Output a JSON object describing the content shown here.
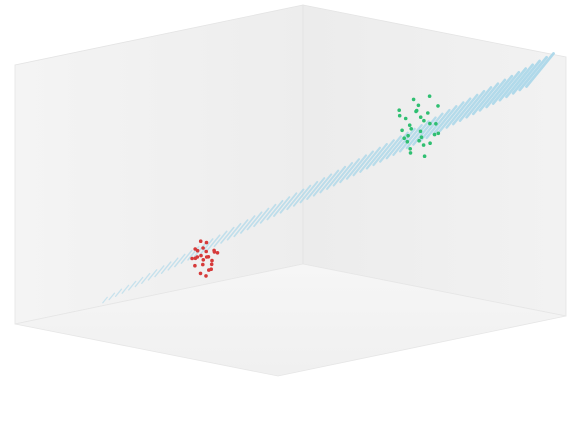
{
  "chart_data": {
    "type": "scatter",
    "dimensions": 3,
    "title": "",
    "xlabel": "",
    "ylabel": "",
    "zlabel": "",
    "axes_visible": false,
    "grid": false,
    "legend": "none",
    "panes": {
      "back_color": "#eeeeee",
      "floor_color": "#f3f3f3"
    },
    "series": [
      {
        "color": "#2fbf71",
        "points": [
          [
            0.32,
            0.78,
            0.82
          ],
          [
            0.29,
            0.8,
            0.77
          ],
          [
            0.35,
            0.76,
            0.75
          ],
          [
            0.31,
            0.79,
            0.72
          ],
          [
            0.27,
            0.77,
            0.8
          ],
          [
            0.33,
            0.82,
            0.7
          ],
          [
            0.36,
            0.8,
            0.78
          ],
          [
            0.3,
            0.74,
            0.74
          ],
          [
            0.28,
            0.82,
            0.84
          ],
          [
            0.34,
            0.78,
            0.68
          ],
          [
            0.31,
            0.76,
            0.86
          ],
          [
            0.37,
            0.79,
            0.73
          ],
          [
            0.26,
            0.79,
            0.76
          ],
          [
            0.32,
            0.81,
            0.79
          ],
          [
            0.3,
            0.77,
            0.7
          ],
          [
            0.35,
            0.83,
            0.76
          ],
          [
            0.29,
            0.75,
            0.81
          ],
          [
            0.33,
            0.77,
            0.66
          ],
          [
            0.31,
            0.84,
            0.74
          ],
          [
            0.34,
            0.74,
            0.8
          ],
          [
            0.28,
            0.79,
            0.69
          ],
          [
            0.36,
            0.76,
            0.83
          ],
          [
            0.3,
            0.81,
            0.88
          ],
          [
            0.32,
            0.75,
            0.72
          ],
          [
            0.27,
            0.81,
            0.73
          ],
          [
            0.35,
            0.78,
            0.71
          ],
          [
            0.33,
            0.8,
            0.85
          ],
          [
            0.29,
            0.78,
            0.64
          ],
          [
            0.31,
            0.73,
            0.78
          ],
          [
            0.34,
            0.82,
            0.81
          ]
        ]
      },
      {
        "color": "#d63a3a",
        "points": [
          [
            0.62,
            0.3,
            0.22
          ],
          [
            0.6,
            0.32,
            0.25
          ],
          [
            0.64,
            0.29,
            0.2
          ],
          [
            0.61,
            0.28,
            0.23
          ],
          [
            0.63,
            0.31,
            0.27
          ],
          [
            0.59,
            0.3,
            0.21
          ],
          [
            0.62,
            0.33,
            0.19
          ],
          [
            0.65,
            0.31,
            0.24
          ],
          [
            0.61,
            0.31,
            0.18
          ],
          [
            0.63,
            0.28,
            0.26
          ],
          [
            0.6,
            0.29,
            0.28
          ],
          [
            0.62,
            0.27,
            0.22
          ],
          [
            0.64,
            0.32,
            0.21
          ],
          [
            0.58,
            0.31,
            0.24
          ],
          [
            0.63,
            0.3,
            0.17
          ],
          [
            0.61,
            0.33,
            0.26
          ],
          [
            0.62,
            0.29,
            0.29
          ],
          [
            0.6,
            0.31,
            0.2
          ],
          [
            0.65,
            0.29,
            0.23
          ],
          [
            0.61,
            0.3,
            0.25
          ],
          [
            0.63,
            0.33,
            0.24
          ],
          [
            0.62,
            0.31,
            0.16
          ],
          [
            0.59,
            0.28,
            0.22
          ],
          [
            0.64,
            0.3,
            0.26
          ]
        ]
      }
    ],
    "decision_plane": {
      "color": "#a9d7ea",
      "style": "hatched"
    }
  }
}
